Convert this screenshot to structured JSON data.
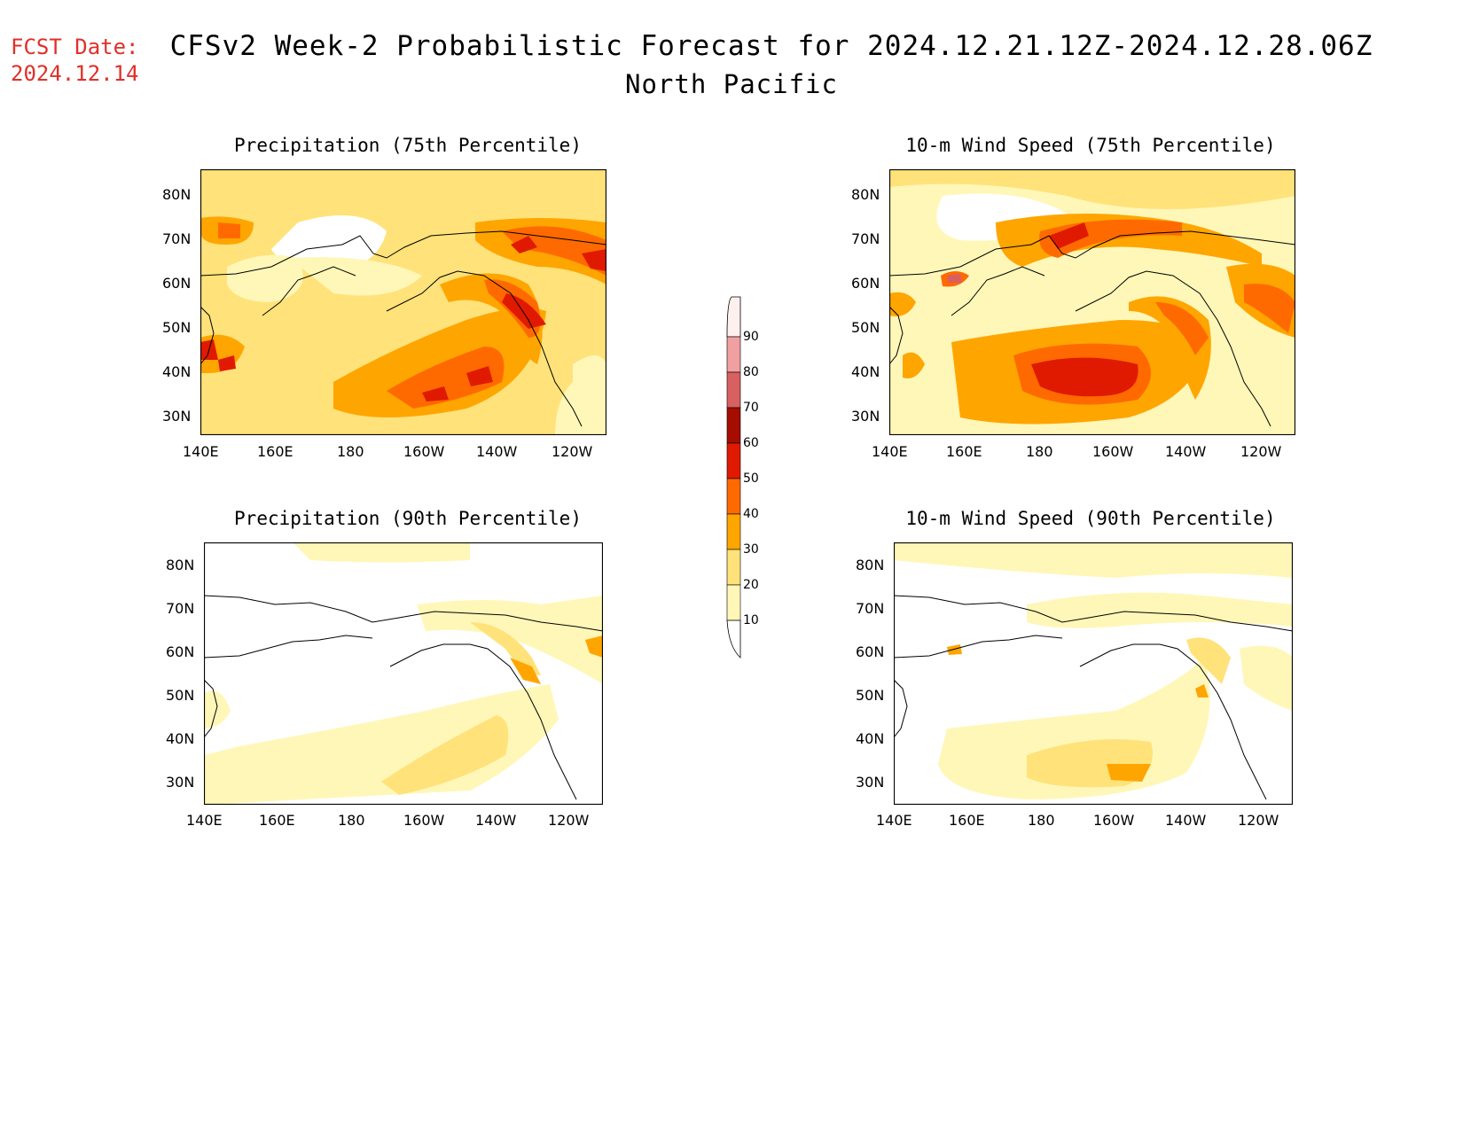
{
  "header": {
    "fcst_line1": "FCST Date:",
    "fcst_line2": "2024.12.14",
    "title": "CFSv2 Week-2 Probabilistic Forecast for 2024.12.21.12Z-2024.12.28.06Z",
    "subtitle": "North Pacific"
  },
  "colors": {
    "c10": "#fff7b8",
    "c20": "#ffe27a",
    "c30": "#ffa500",
    "c40": "#ff6a00",
    "c50": "#e01a00",
    "c60": "#a50d00",
    "c70": "#d86060",
    "c80": "#f0a0a0",
    "c90": "#fff0f0"
  },
  "colorbar": {
    "ticks": [
      "10",
      "20",
      "30",
      "40",
      "50",
      "60",
      "70",
      "80",
      "90"
    ]
  },
  "axes": {
    "lat_labels": [
      "80N",
      "70N",
      "60N",
      "50N",
      "40N",
      "30N"
    ],
    "lon_labels": [
      "140E",
      "160E",
      "180",
      "160W",
      "140W",
      "120W"
    ]
  },
  "panels": [
    {
      "id": "precip75",
      "title": "Precipitation (75th Percentile)"
    },
    {
      "id": "wind75",
      "title": "10-m Wind Speed (75th Percentile)"
    },
    {
      "id": "precip90",
      "title": "Precipitation (90th Percentile)"
    },
    {
      "id": "wind90",
      "title": "10-m Wind Speed (90th Percentile)"
    }
  ]
}
